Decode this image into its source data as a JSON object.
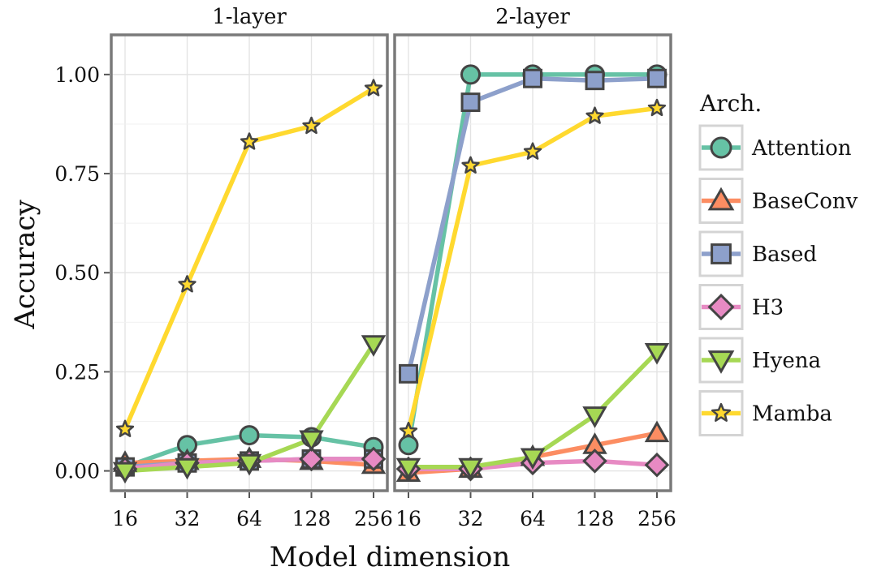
{
  "chart_data": {
    "type": "line",
    "x_title": "Model dimension",
    "y_title": "Accuracy",
    "categories": [
      "16",
      "32",
      "64",
      "128",
      "256"
    ],
    "y_ticks": [
      "0.00",
      "0.25",
      "0.50",
      "0.75",
      "1.00"
    ],
    "ylim": [
      -0.05,
      1.1
    ],
    "grid": true,
    "legend": {
      "title": "Arch.",
      "placement": "right",
      "entries": [
        "Attention",
        "BaseConv",
        "Based",
        "H3",
        "Hyena",
        "Mamba"
      ]
    },
    "series_style": [
      {
        "name": "Attention",
        "color": "#66c2a5",
        "marker": "circle"
      },
      {
        "name": "BaseConv",
        "color": "#fc8d62",
        "marker": "triangle-up"
      },
      {
        "name": "Based",
        "color": "#8da0cb",
        "marker": "square"
      },
      {
        "name": "H3",
        "color": "#e78ac3",
        "marker": "diamond"
      },
      {
        "name": "Hyena",
        "color": "#a6d854",
        "marker": "triangle-down"
      },
      {
        "name": "Mamba",
        "color": "#ffd92f",
        "marker": "star"
      }
    ],
    "panels": [
      {
        "strip": "1-layer",
        "series": [
          {
            "name": "Attention",
            "values": [
              0.01,
              0.065,
              0.09,
              0.085,
              0.06
            ]
          },
          {
            "name": "BaseConv",
            "values": [
              0.02,
              0.025,
              0.03,
              0.025,
              0.015
            ]
          },
          {
            "name": "Based",
            "values": [
              0.01,
              0.02,
              0.025,
              0.03,
              0.03
            ]
          },
          {
            "name": "H3",
            "values": [
              0.005,
              0.02,
              0.025,
              0.03,
              0.03
            ]
          },
          {
            "name": "Hyena",
            "values": [
              0.0,
              0.01,
              0.02,
              0.08,
              0.32
            ]
          },
          {
            "name": "Mamba",
            "values": [
              0.105,
              0.47,
              0.83,
              0.87,
              0.965
            ]
          }
        ]
      },
      {
        "strip": "2-layer",
        "series": [
          {
            "name": "Attention",
            "values": [
              0.065,
              1.0,
              1.0,
              1.0,
              1.0
            ]
          },
          {
            "name": "BaseConv",
            "values": [
              -0.005,
              0.005,
              0.035,
              0.065,
              0.095
            ]
          },
          {
            "name": "Based",
            "values": [
              0.245,
              0.93,
              0.99,
              0.985,
              0.99
            ]
          },
          {
            "name": "H3",
            "values": [
              0.005,
              0.005,
              0.02,
              0.025,
              0.015
            ]
          },
          {
            "name": "Hyena",
            "values": [
              0.01,
              0.01,
              0.035,
              0.14,
              0.3
            ]
          },
          {
            "name": "Mamba",
            "values": [
              0.1,
              0.77,
              0.805,
              0.895,
              0.915
            ]
          }
        ]
      }
    ]
  }
}
